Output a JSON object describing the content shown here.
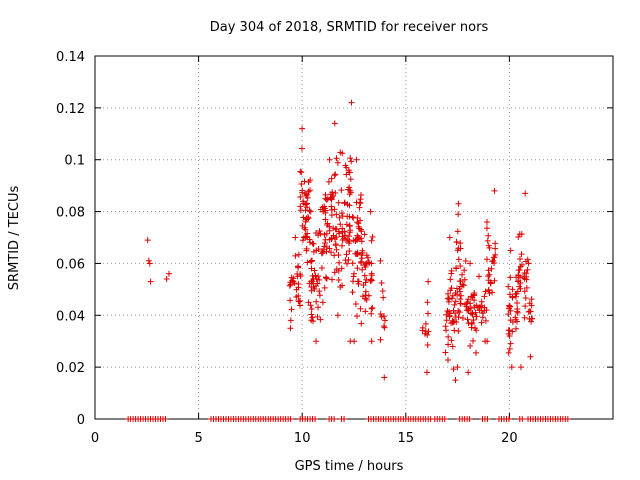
{
  "chart_data": {
    "type": "scatter",
    "title": "Day 304 of 2018, SRMTID for receiver nors",
    "xlabel": "GPS time / hours",
    "ylabel": "SRMTID / TECUs",
    "xlim": [
      0,
      25
    ],
    "ylim": [
      0,
      0.14
    ],
    "x_ticks": [
      0,
      5,
      10,
      15,
      20
    ],
    "y_ticks": [
      0,
      0.02,
      0.04,
      0.06,
      0.08,
      0.1,
      0.12,
      0.14
    ],
    "grid": true,
    "marker": "+",
    "color": "#dd0000",
    "zero_value_ranges": [
      [
        1.6,
        3.5
      ],
      [
        5.6,
        9.5
      ],
      [
        9.9,
        10.7
      ],
      [
        11.3,
        11.6
      ],
      [
        11.9,
        12.1
      ],
      [
        13.2,
        16.2
      ],
      [
        16.4,
        17.0
      ],
      [
        17.6,
        18.2
      ],
      [
        18.7,
        19.0
      ],
      [
        19.5,
        20.1
      ],
      [
        20.5,
        20.7
      ],
      [
        20.9,
        22.9
      ]
    ],
    "clusters": [
      {
        "x": [
          2.5,
          2.7
        ],
        "y": [
          0.053,
          0.069
        ],
        "n": 4
      },
      {
        "x": [
          3.4,
          3.6
        ],
        "y": [
          0.054,
          0.056
        ],
        "n": 1
      },
      {
        "x": [
          9.4,
          9.9
        ],
        "y": [
          0.035,
          0.07
        ],
        "n": 30
      },
      {
        "x": [
          9.9,
          10.4
        ],
        "y": [
          0.045,
          0.112
        ],
        "n": 50
      },
      {
        "x": [
          10.4,
          10.9
        ],
        "y": [
          0.03,
          0.08
        ],
        "n": 45
      },
      {
        "x": [
          10.9,
          11.4
        ],
        "y": [
          0.045,
          0.1
        ],
        "n": 40
      },
      {
        "x": [
          11.4,
          11.9
        ],
        "y": [
          0.04,
          0.114
        ],
        "n": 45
      },
      {
        "x": [
          11.9,
          12.4
        ],
        "y": [
          0.03,
          0.122
        ],
        "n": 50
      },
      {
        "x": [
          12.4,
          12.9
        ],
        "y": [
          0.03,
          0.1
        ],
        "n": 50
      },
      {
        "x": [
          12.9,
          13.4
        ],
        "y": [
          0.03,
          0.08
        ],
        "n": 35
      },
      {
        "x": [
          13.7,
          14.0
        ],
        "y": [
          0.016,
          0.061
        ],
        "n": 12
      },
      {
        "x": [
          15.8,
          16.1
        ],
        "y": [
          0.018,
          0.053
        ],
        "n": 12
      },
      {
        "x": [
          16.9,
          17.4
        ],
        "y": [
          0.015,
          0.07
        ],
        "n": 40
      },
      {
        "x": [
          17.4,
          17.9
        ],
        "y": [
          0.02,
          0.083
        ],
        "n": 40
      },
      {
        "x": [
          17.9,
          18.4
        ],
        "y": [
          0.018,
          0.06
        ],
        "n": 35
      },
      {
        "x": [
          18.4,
          18.9
        ],
        "y": [
          0.03,
          0.055
        ],
        "n": 20
      },
      {
        "x": [
          18.9,
          19.4
        ],
        "y": [
          0.03,
          0.088
        ],
        "n": 30
      },
      {
        "x": [
          19.9,
          20.4
        ],
        "y": [
          0.02,
          0.065
        ],
        "n": 35
      },
      {
        "x": [
          20.4,
          20.9
        ],
        "y": [
          0.02,
          0.087
        ],
        "n": 35
      },
      {
        "x": [
          20.9,
          21.1
        ],
        "y": [
          0.024,
          0.06
        ],
        "n": 12
      }
    ]
  }
}
